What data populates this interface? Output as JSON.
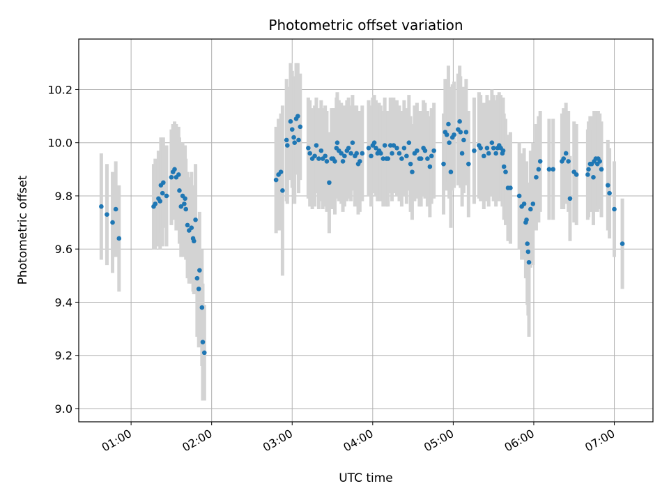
{
  "chart_data": {
    "type": "scatter",
    "title": "Photometric offset variation",
    "xlabel": "UTC time",
    "ylabel": "Photometric offset",
    "x_unit": "hours UTC",
    "xlim": [
      0.35,
      7.48
    ],
    "ylim": [
      8.95,
      10.39
    ],
    "x_ticks": [
      {
        "value": 1,
        "label": "01:00"
      },
      {
        "value": 2,
        "label": "02:00"
      },
      {
        "value": 3,
        "label": "03:00"
      },
      {
        "value": 4,
        "label": "04:00"
      },
      {
        "value": 5,
        "label": "05:00"
      },
      {
        "value": 6,
        "label": "06:00"
      },
      {
        "value": 7,
        "label": "07:00"
      }
    ],
    "y_ticks": [
      {
        "value": 9.0,
        "label": "9.0"
      },
      {
        "value": 9.2,
        "label": "9.2"
      },
      {
        "value": 9.4,
        "label": "9.4"
      },
      {
        "value": 9.6,
        "label": "9.6"
      },
      {
        "value": 9.8,
        "label": "9.8"
      },
      {
        "value": 10.0,
        "label": "10.0"
      },
      {
        "value": 10.2,
        "label": "10.2"
      }
    ],
    "grid": true,
    "legend": "none",
    "colors": {
      "marker": "#1f77b4",
      "errorbar": "#d3d3d3",
      "grid": "#b0b0b0",
      "axes": "#000000"
    },
    "points": [
      {
        "x": 0.63,
        "y": 9.76,
        "err": 0.2
      },
      {
        "x": 0.7,
        "y": 9.73,
        "err": 0.19
      },
      {
        "x": 0.77,
        "y": 9.7,
        "err": 0.19
      },
      {
        "x": 0.81,
        "y": 9.75,
        "err": 0.18
      },
      {
        "x": 0.85,
        "y": 9.64,
        "err": 0.2
      },
      {
        "x": 1.28,
        "y": 9.76,
        "err": 0.16
      },
      {
        "x": 1.3,
        "y": 9.77,
        "err": 0.17
      },
      {
        "x": 1.34,
        "y": 9.79,
        "err": 0.18
      },
      {
        "x": 1.36,
        "y": 9.78,
        "err": 0.18
      },
      {
        "x": 1.37,
        "y": 9.84,
        "err": 0.18
      },
      {
        "x": 1.39,
        "y": 9.81,
        "err": 0.2
      },
      {
        "x": 1.4,
        "y": 9.85,
        "err": 0.17
      },
      {
        "x": 1.44,
        "y": 9.8,
        "err": 0.19
      },
      {
        "x": 1.5,
        "y": 9.87,
        "err": 0.18
      },
      {
        "x": 1.52,
        "y": 9.89,
        "err": 0.18
      },
      {
        "x": 1.54,
        "y": 9.9,
        "err": 0.18
      },
      {
        "x": 1.56,
        "y": 9.87,
        "err": 0.2
      },
      {
        "x": 1.59,
        "y": 9.88,
        "err": 0.18
      },
      {
        "x": 1.6,
        "y": 9.82,
        "err": 0.2
      },
      {
        "x": 1.62,
        "y": 9.76,
        "err": 0.19
      },
      {
        "x": 1.64,
        "y": 9.8,
        "err": 0.2
      },
      {
        "x": 1.66,
        "y": 9.77,
        "err": 0.2
      },
      {
        "x": 1.67,
        "y": 9.79,
        "err": 0.2
      },
      {
        "x": 1.68,
        "y": 9.75,
        "err": 0.19
      },
      {
        "x": 1.7,
        "y": 9.69,
        "err": 0.2
      },
      {
        "x": 1.72,
        "y": 9.67,
        "err": 0.2
      },
      {
        "x": 1.75,
        "y": 9.68,
        "err": 0.21
      },
      {
        "x": 1.77,
        "y": 9.64,
        "err": 0.2
      },
      {
        "x": 1.78,
        "y": 9.63,
        "err": 0.2
      },
      {
        "x": 1.8,
        "y": 9.71,
        "err": 0.21
      },
      {
        "x": 1.82,
        "y": 9.49,
        "err": 0.22
      },
      {
        "x": 1.84,
        "y": 9.45,
        "err": 0.22
      },
      {
        "x": 1.85,
        "y": 9.52,
        "err": 0.22
      },
      {
        "x": 1.88,
        "y": 9.38,
        "err": 0.22
      },
      {
        "x": 1.89,
        "y": 9.25,
        "err": 0.22
      },
      {
        "x": 1.91,
        "y": 9.21,
        "err": 0.18
      },
      {
        "x": 2.8,
        "y": 9.86,
        "err": 0.2
      },
      {
        "x": 2.83,
        "y": 9.88,
        "err": 0.21
      },
      {
        "x": 2.86,
        "y": 9.89,
        "err": 0.22
      },
      {
        "x": 2.88,
        "y": 9.82,
        "err": 0.32
      },
      {
        "x": 2.93,
        "y": 10.01,
        "err": 0.23
      },
      {
        "x": 2.94,
        "y": 9.99,
        "err": 0.22
      },
      {
        "x": 2.98,
        "y": 10.08,
        "err": 0.22
      },
      {
        "x": 3.0,
        "y": 10.05,
        "err": 0.22
      },
      {
        "x": 3.02,
        "y": 10.02,
        "err": 0.23
      },
      {
        "x": 3.03,
        "y": 10.0,
        "err": 0.23
      },
      {
        "x": 3.05,
        "y": 10.09,
        "err": 0.21
      },
      {
        "x": 3.07,
        "y": 10.1,
        "err": 0.2
      },
      {
        "x": 3.08,
        "y": 10.01,
        "err": 0.2
      },
      {
        "x": 3.1,
        "y": 10.06,
        "err": 0.2
      },
      {
        "x": 3.2,
        "y": 9.98,
        "err": 0.19
      },
      {
        "x": 3.22,
        "y": 9.96,
        "err": 0.2
      },
      {
        "x": 3.25,
        "y": 9.94,
        "err": 0.19
      },
      {
        "x": 3.28,
        "y": 9.95,
        "err": 0.19
      },
      {
        "x": 3.3,
        "y": 9.99,
        "err": 0.18
      },
      {
        "x": 3.33,
        "y": 9.94,
        "err": 0.19
      },
      {
        "x": 3.36,
        "y": 9.97,
        "err": 0.19
      },
      {
        "x": 3.38,
        "y": 9.94,
        "err": 0.19
      },
      {
        "x": 3.41,
        "y": 9.95,
        "err": 0.19
      },
      {
        "x": 3.43,
        "y": 9.93,
        "err": 0.19
      },
      {
        "x": 3.46,
        "y": 9.85,
        "err": 0.19
      },
      {
        "x": 3.49,
        "y": 9.94,
        "err": 0.19
      },
      {
        "x": 3.51,
        "y": 9.94,
        "err": 0.19
      },
      {
        "x": 3.53,
        "y": 9.93,
        "err": 0.2
      },
      {
        "x": 3.55,
        "y": 9.98,
        "err": 0.19
      },
      {
        "x": 3.56,
        "y": 10.0,
        "err": 0.19
      },
      {
        "x": 3.58,
        "y": 9.97,
        "err": 0.19
      },
      {
        "x": 3.61,
        "y": 9.96,
        "err": 0.19
      },
      {
        "x": 3.63,
        "y": 9.93,
        "err": 0.19
      },
      {
        "x": 3.65,
        "y": 9.95,
        "err": 0.19
      },
      {
        "x": 3.68,
        "y": 9.97,
        "err": 0.19
      },
      {
        "x": 3.7,
        "y": 9.98,
        "err": 0.19
      },
      {
        "x": 3.73,
        "y": 9.96,
        "err": 0.18
      },
      {
        "x": 3.75,
        "y": 10.0,
        "err": 0.18
      },
      {
        "x": 3.78,
        "y": 9.95,
        "err": 0.19
      },
      {
        "x": 3.8,
        "y": 9.96,
        "err": 0.18
      },
      {
        "x": 3.82,
        "y": 9.92,
        "err": 0.19
      },
      {
        "x": 3.84,
        "y": 9.93,
        "err": 0.19
      },
      {
        "x": 3.87,
        "y": 9.96,
        "err": 0.18
      },
      {
        "x": 3.95,
        "y": 9.98,
        "err": 0.18
      },
      {
        "x": 3.98,
        "y": 9.95,
        "err": 0.19
      },
      {
        "x": 4.0,
        "y": 9.99,
        "err": 0.18
      },
      {
        "x": 4.02,
        "y": 10.0,
        "err": 0.18
      },
      {
        "x": 4.04,
        "y": 9.98,
        "err": 0.18
      },
      {
        "x": 4.06,
        "y": 9.96,
        "err": 0.18
      },
      {
        "x": 4.08,
        "y": 9.97,
        "err": 0.18
      },
      {
        "x": 4.1,
        "y": 9.96,
        "err": 0.18
      },
      {
        "x": 4.13,
        "y": 9.94,
        "err": 0.18
      },
      {
        "x": 4.15,
        "y": 9.99,
        "err": 0.18
      },
      {
        "x": 4.17,
        "y": 9.94,
        "err": 0.18
      },
      {
        "x": 4.19,
        "y": 9.94,
        "err": 0.18
      },
      {
        "x": 4.22,
        "y": 9.99,
        "err": 0.18
      },
      {
        "x": 4.24,
        "y": 9.96,
        "err": 0.18
      },
      {
        "x": 4.26,
        "y": 9.99,
        "err": 0.18
      },
      {
        "x": 4.3,
        "y": 9.98,
        "err": 0.18
      },
      {
        "x": 4.33,
        "y": 9.96,
        "err": 0.18
      },
      {
        "x": 4.36,
        "y": 9.94,
        "err": 0.18
      },
      {
        "x": 4.39,
        "y": 9.98,
        "err": 0.18
      },
      {
        "x": 4.42,
        "y": 9.95,
        "err": 0.18
      },
      {
        "x": 4.45,
        "y": 10.0,
        "err": 0.18
      },
      {
        "x": 4.47,
        "y": 9.92,
        "err": 0.18
      },
      {
        "x": 4.49,
        "y": 9.89,
        "err": 0.18
      },
      {
        "x": 4.52,
        "y": 9.96,
        "err": 0.18
      },
      {
        "x": 4.55,
        "y": 9.97,
        "err": 0.18
      },
      {
        "x": 4.58,
        "y": 9.94,
        "err": 0.18
      },
      {
        "x": 4.6,
        "y": 9.94,
        "err": 0.18
      },
      {
        "x": 4.63,
        "y": 9.98,
        "err": 0.18
      },
      {
        "x": 4.65,
        "y": 9.97,
        "err": 0.18
      },
      {
        "x": 4.68,
        "y": 9.94,
        "err": 0.18
      },
      {
        "x": 4.71,
        "y": 9.91,
        "err": 0.19
      },
      {
        "x": 4.73,
        "y": 9.95,
        "err": 0.18
      },
      {
        "x": 4.76,
        "y": 9.97,
        "err": 0.18
      },
      {
        "x": 4.88,
        "y": 9.92,
        "err": 0.19
      },
      {
        "x": 4.9,
        "y": 10.04,
        "err": 0.2
      },
      {
        "x": 4.92,
        "y": 10.03,
        "err": 0.21
      },
      {
        "x": 4.94,
        "y": 10.07,
        "err": 0.22
      },
      {
        "x": 4.95,
        "y": 10.0,
        "err": 0.21
      },
      {
        "x": 4.97,
        "y": 9.89,
        "err": 0.21
      },
      {
        "x": 4.99,
        "y": 10.02,
        "err": 0.2
      },
      {
        "x": 5.01,
        "y": 10.03,
        "err": 0.2
      },
      {
        "x": 5.06,
        "y": 10.05,
        "err": 0.21
      },
      {
        "x": 5.08,
        "y": 10.08,
        "err": 0.21
      },
      {
        "x": 5.09,
        "y": 10.04,
        "err": 0.21
      },
      {
        "x": 5.11,
        "y": 9.96,
        "err": 0.2
      },
      {
        "x": 5.13,
        "y": 10.01,
        "err": 0.2
      },
      {
        "x": 5.16,
        "y": 10.04,
        "err": 0.2
      },
      {
        "x": 5.19,
        "y": 9.92,
        "err": 0.2
      },
      {
        "x": 5.26,
        "y": 9.97,
        "err": 0.2
      },
      {
        "x": 5.32,
        "y": 9.99,
        "err": 0.2
      },
      {
        "x": 5.34,
        "y": 9.98,
        "err": 0.2
      },
      {
        "x": 5.38,
        "y": 9.95,
        "err": 0.2
      },
      {
        "x": 5.42,
        "y": 9.98,
        "err": 0.2
      },
      {
        "x": 5.44,
        "y": 9.96,
        "err": 0.2
      },
      {
        "x": 5.48,
        "y": 10.0,
        "err": 0.2
      },
      {
        "x": 5.5,
        "y": 9.98,
        "err": 0.2
      },
      {
        "x": 5.53,
        "y": 9.96,
        "err": 0.2
      },
      {
        "x": 5.55,
        "y": 9.98,
        "err": 0.2
      },
      {
        "x": 5.57,
        "y": 9.99,
        "err": 0.2
      },
      {
        "x": 5.59,
        "y": 9.98,
        "err": 0.2
      },
      {
        "x": 5.61,
        "y": 9.96,
        "err": 0.2
      },
      {
        "x": 5.62,
        "y": 9.97,
        "err": 0.2
      },
      {
        "x": 5.63,
        "y": 9.91,
        "err": 0.2
      },
      {
        "x": 5.65,
        "y": 9.89,
        "err": 0.2
      },
      {
        "x": 5.68,
        "y": 9.83,
        "err": 0.2
      },
      {
        "x": 5.71,
        "y": 9.83,
        "err": 0.21
      },
      {
        "x": 5.82,
        "y": 9.8,
        "err": 0.2
      },
      {
        "x": 5.85,
        "y": 9.76,
        "err": 0.2
      },
      {
        "x": 5.88,
        "y": 9.77,
        "err": 0.21
      },
      {
        "x": 5.9,
        "y": 9.7,
        "err": 0.21
      },
      {
        "x": 5.91,
        "y": 9.71,
        "err": 0.22
      },
      {
        "x": 5.92,
        "y": 9.62,
        "err": 0.23
      },
      {
        "x": 5.93,
        "y": 9.59,
        "err": 0.24
      },
      {
        "x": 5.94,
        "y": 9.55,
        "err": 0.28
      },
      {
        "x": 5.96,
        "y": 9.75,
        "err": 0.22
      },
      {
        "x": 5.99,
        "y": 9.77,
        "err": 0.23
      },
      {
        "x": 6.03,
        "y": 9.87,
        "err": 0.2
      },
      {
        "x": 6.06,
        "y": 9.9,
        "err": 0.2
      },
      {
        "x": 6.08,
        "y": 9.93,
        "err": 0.19
      },
      {
        "x": 6.19,
        "y": 9.9,
        "err": 0.19
      },
      {
        "x": 6.24,
        "y": 9.9,
        "err": 0.19
      },
      {
        "x": 6.35,
        "y": 9.93,
        "err": 0.18
      },
      {
        "x": 6.37,
        "y": 9.94,
        "err": 0.19
      },
      {
        "x": 6.4,
        "y": 9.96,
        "err": 0.19
      },
      {
        "x": 6.43,
        "y": 9.93,
        "err": 0.19
      },
      {
        "x": 6.45,
        "y": 9.79,
        "err": 0.16
      },
      {
        "x": 6.5,
        "y": 9.89,
        "err": 0.19
      },
      {
        "x": 6.53,
        "y": 9.88,
        "err": 0.19
      },
      {
        "x": 6.67,
        "y": 9.88,
        "err": 0.17
      },
      {
        "x": 6.68,
        "y": 9.9,
        "err": 0.18
      },
      {
        "x": 6.7,
        "y": 9.92,
        "err": 0.18
      },
      {
        "x": 6.72,
        "y": 9.92,
        "err": 0.18
      },
      {
        "x": 6.74,
        "y": 9.87,
        "err": 0.18
      },
      {
        "x": 6.75,
        "y": 9.93,
        "err": 0.19
      },
      {
        "x": 6.77,
        "y": 9.94,
        "err": 0.18
      },
      {
        "x": 6.79,
        "y": 9.92,
        "err": 0.18
      },
      {
        "x": 6.8,
        "y": 9.94,
        "err": 0.18
      },
      {
        "x": 6.82,
        "y": 9.93,
        "err": 0.18
      },
      {
        "x": 6.84,
        "y": 9.9,
        "err": 0.18
      },
      {
        "x": 6.92,
        "y": 9.84,
        "err": 0.17
      },
      {
        "x": 6.94,
        "y": 9.81,
        "err": 0.17
      },
      {
        "x": 7.0,
        "y": 9.75,
        "err": 0.18
      },
      {
        "x": 7.1,
        "y": 9.62,
        "err": 0.17
      }
    ]
  }
}
